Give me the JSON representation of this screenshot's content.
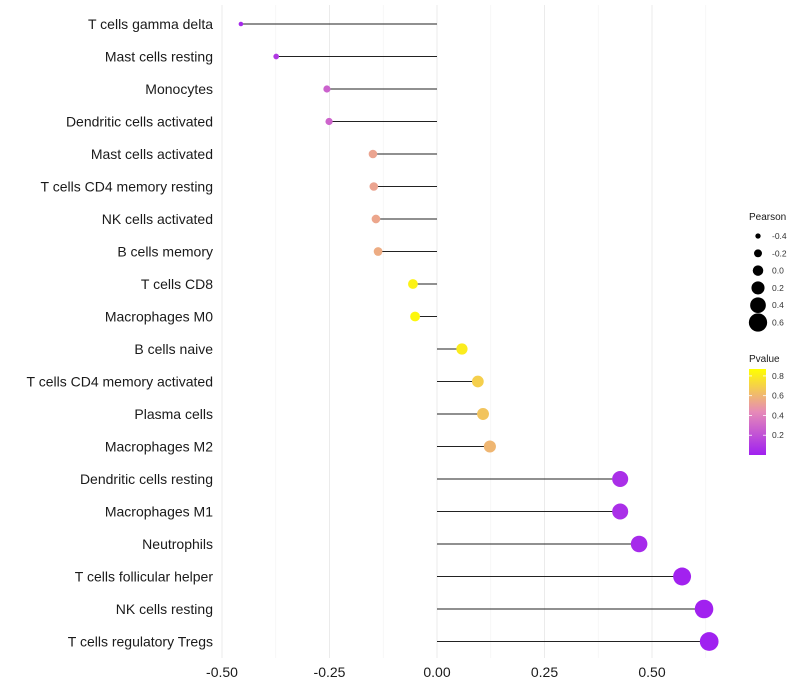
{
  "chart_data": {
    "type": "lollipop",
    "title": "",
    "xlabel": "",
    "ylabel": "",
    "xlim": [
      -0.53,
      0.66
    ],
    "x_ticks": [
      -0.5,
      -0.25,
      0.0,
      0.25,
      0.5
    ],
    "x_tick_labels": [
      "-0.50",
      "-0.25",
      "0.00",
      "0.25",
      "0.50"
    ],
    "grid": true,
    "categories": [
      "T cells gamma delta",
      "Mast cells resting",
      "Monocytes",
      "Dendritic cells activated",
      "Mast cells activated",
      "T cells CD4 memory resting",
      "NK cells activated",
      "B cells memory",
      "T cells CD8",
      "Macrophages M0",
      "B cells naive",
      "T cells CD4 memory activated",
      "Plasma cells",
      "Macrophages M2",
      "Dendritic cells resting",
      "Macrophages M1",
      "Neutrophils",
      "T cells follicular helper",
      "NK cells resting",
      "T cells regulatory  Tregs"
    ],
    "pearson": [
      -0.456,
      -0.374,
      -0.256,
      -0.251,
      -0.149,
      -0.147,
      -0.142,
      -0.137,
      -0.056,
      -0.051,
      0.058,
      0.095,
      0.107,
      0.123,
      0.426,
      0.426,
      0.47,
      0.57,
      0.621,
      0.633
    ],
    "pvalue": [
      0.04,
      0.1,
      0.27,
      0.28,
      0.53,
      0.53,
      0.54,
      0.56,
      0.82,
      0.84,
      0.8,
      0.69,
      0.65,
      0.6,
      0.06,
      0.06,
      0.04,
      0.01,
      0.004,
      0.003
    ],
    "legend_size": {
      "title": "Pearson",
      "values": [
        -0.4,
        -0.2,
        0.0,
        0.2,
        0.4,
        0.6
      ],
      "labels": [
        "-0.4",
        "-0.2",
        "0.0",
        "0.2",
        "0.4",
        "0.6"
      ]
    },
    "legend_color": {
      "title": "Pvalue",
      "range": [
        0.0,
        0.87
      ],
      "ticks": [
        0.2,
        0.4,
        0.6,
        0.8
      ],
      "labels": [
        "0.2",
        "0.4",
        "0.6",
        "0.8"
      ],
      "low_color": "#A020F0",
      "mid_color": "#E68AB8",
      "high_color": "#FFFF00"
    },
    "legend_position": "right"
  }
}
